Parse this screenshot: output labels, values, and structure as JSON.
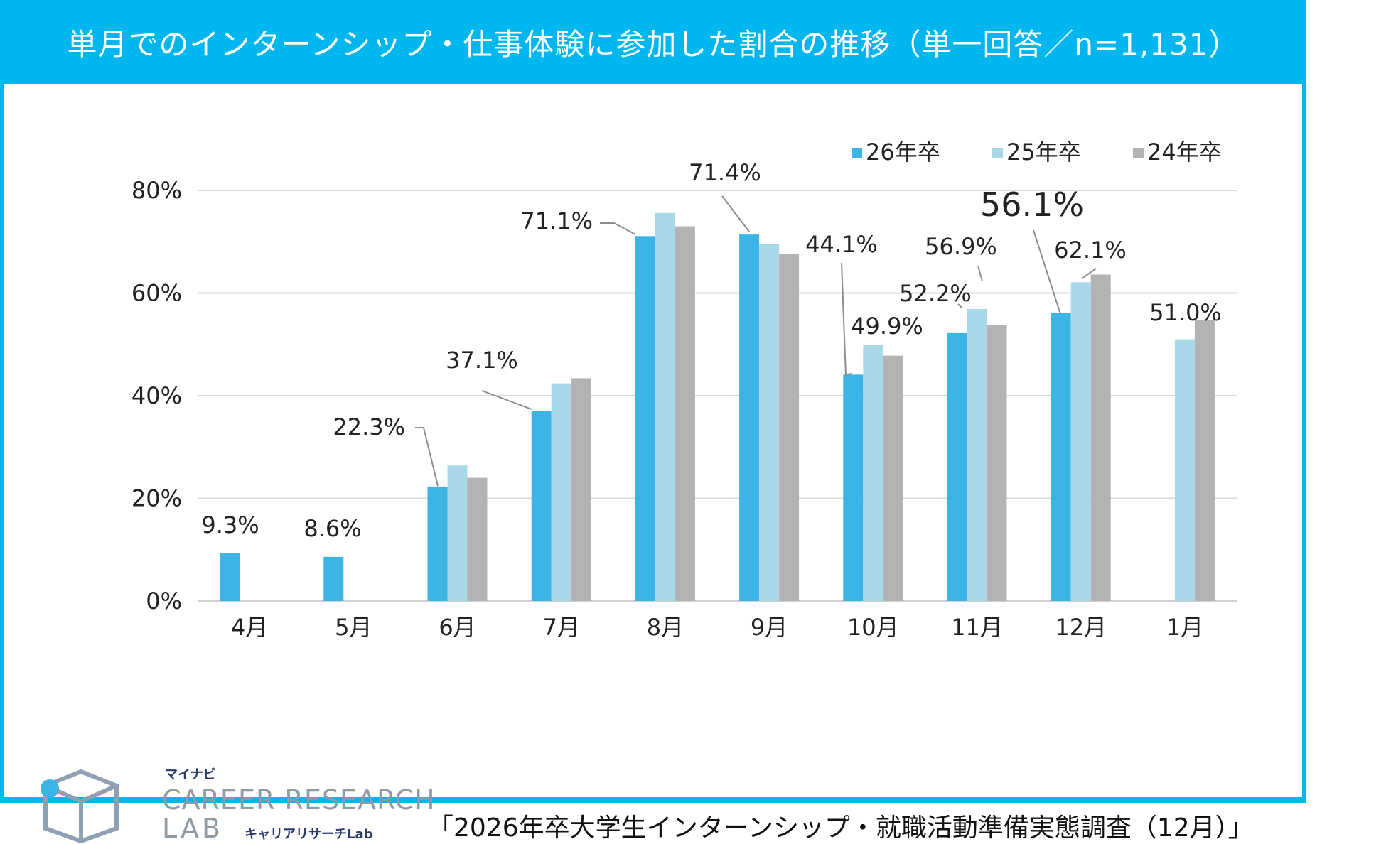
{
  "header": {
    "title": "単月でのインターンシップ・仕事体験に参加した割合の推移（単一回答／n=1,131）"
  },
  "colors": {
    "frame": "#00b6ef",
    "s26": "#3cb4e6",
    "s25": "#a8d8ea",
    "s24": "#b3b3b3",
    "highlight": "#e62020"
  },
  "chart_data": {
    "type": "bar",
    "title": "単月でのインターンシップ・仕事体験に参加した割合の推移（単一回答／n=1,131）",
    "categories": [
      "4月",
      "5月",
      "6月",
      "7月",
      "8月",
      "9月",
      "10月",
      "11月",
      "12月",
      "1月"
    ],
    "series": [
      {
        "name": "26年卒",
        "values": [
          9.3,
          8.6,
          22.3,
          37.1,
          71.1,
          71.4,
          44.1,
          52.2,
          56.1,
          null
        ]
      },
      {
        "name": "25年卒",
        "values": [
          null,
          null,
          26.4,
          42.4,
          75.6,
          69.5,
          49.9,
          56.9,
          62.1,
          51.0
        ]
      },
      {
        "name": "24年卒",
        "values": [
          null,
          null,
          24.0,
          43.4,
          73.0,
          67.6,
          47.8,
          53.8,
          63.6,
          54.7
        ]
      }
    ],
    "ylim": [
      0,
      80
    ],
    "yticks": [
      "0%",
      "20%",
      "40%",
      "60%",
      "80%"
    ],
    "ytick_values": [
      0,
      20,
      40,
      60,
      80
    ],
    "legend": [
      "26年卒",
      "25年卒",
      "24年卒"
    ],
    "legend_position": "top-right",
    "grid": true,
    "labels": [
      {
        "text": "9.3%",
        "category": 0,
        "series": 0
      },
      {
        "text": "8.6%",
        "category": 1,
        "series": 0
      },
      {
        "text": "22.3%",
        "category": 2,
        "series": 0
      },
      {
        "text": "37.1%",
        "category": 3,
        "series": 0
      },
      {
        "text": "71.1%",
        "category": 4,
        "series": 0
      },
      {
        "text": "71.4%",
        "category": 5,
        "series": 0
      },
      {
        "text": "44.1%",
        "category": 6,
        "series": 0
      },
      {
        "text": "49.9%",
        "category": 6,
        "series": 1
      },
      {
        "text": "52.2%",
        "category": 7,
        "series": 0
      },
      {
        "text": "56.9%",
        "category": 7,
        "series": 1
      },
      {
        "text": "56.1%",
        "category": 8,
        "series": 0,
        "highlight": true
      },
      {
        "text": "62.1%",
        "category": 8,
        "series": 1
      },
      {
        "text": "51.0%",
        "category": 9,
        "series": 1
      }
    ]
  },
  "logo": {
    "small": "マイナビ",
    "line1": "CAREER RESEARCH",
    "line2": "LAB",
    "kana": "キャリアリサーチLab"
  },
  "footer": {
    "source": "「2026年卒大学生インターンシップ・就職活動準備実態調査（12月）」"
  }
}
